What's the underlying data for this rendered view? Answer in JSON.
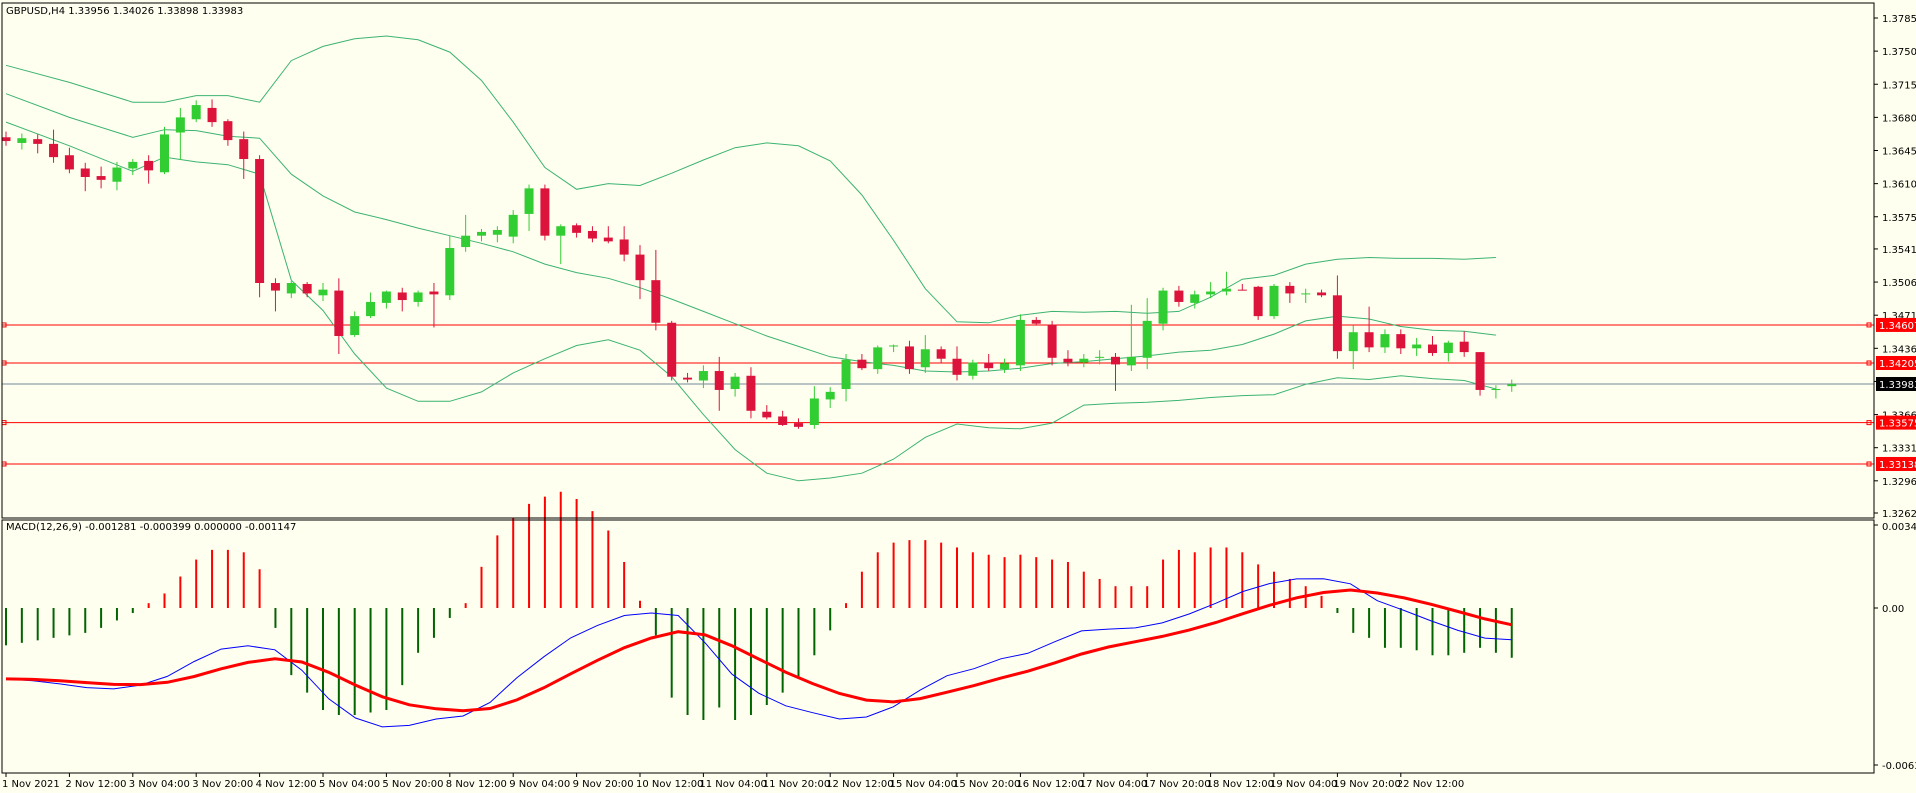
{
  "window": {
    "header": "GBPUSD,H4  1.33956 1.34026 1.33898 1.33983",
    "macd_header": "MACD(12,26,9) -0.001281 -0.000399 0.000000 -0.001147"
  },
  "colors": {
    "background": "#fffff0",
    "bull_candle": "#32cd32",
    "bear_candle": "#dc143c",
    "bollinger": "#3cb371",
    "level_line": "#ff0000",
    "bid_line": "#778899",
    "macd_line": "#0000ff",
    "signal_line": "#ff0000",
    "hist_positive": "#ff0000",
    "hist_negative": "#006400"
  },
  "chart_data": [
    {
      "type": "candlestick",
      "symbol": "GBPUSD",
      "timeframe": "H4",
      "ylim": [
        1.3262,
        1.3785
      ],
      "price_ticks": [
        "1.37850",
        "1.37500",
        "1.37150",
        "1.36800",
        "1.36450",
        "1.36100",
        "1.35750",
        "1.35410",
        "1.35060",
        "1.34710",
        "1.34360",
        "1.34010",
        "1.33660",
        "1.33310",
        "1.32960",
        "1.32620"
      ],
      "x_labels": [
        "1 Nov 2021",
        "2 Nov 12:00",
        "3 Nov 04:00",
        "3 Nov 20:00",
        "4 Nov 12:00",
        "5 Nov 04:00",
        "5 Nov 20:00",
        "8 Nov 12:00",
        "9 Nov 04:00",
        "9 Nov 20:00",
        "10 Nov 12:00",
        "11 Nov 04:00",
        "11 Nov 20:00",
        "12 Nov 12:00",
        "15 Nov 04:00",
        "15 Nov 20:00",
        "16 Nov 12:00",
        "17 Nov 04:00",
        "17 Nov 20:00",
        "18 Nov 12:00",
        "19 Nov 04:00",
        "19 Nov 20:00",
        "22 Nov 12:00"
      ],
      "x_label_candle_index": [
        0,
        4,
        8,
        12,
        16,
        20,
        24,
        28,
        32,
        36,
        40,
        44,
        48,
        52,
        56,
        60,
        64,
        68,
        72,
        76,
        80,
        84,
        88
      ],
      "candles": [
        {
          "o": 1.3659,
          "h": 1.3665,
          "l": 1.365,
          "c": 1.3655
        },
        {
          "o": 1.3653,
          "h": 1.3663,
          "l": 1.3646,
          "c": 1.3658
        },
        {
          "o": 1.3657,
          "h": 1.3662,
          "l": 1.3642,
          "c": 1.3652
        },
        {
          "o": 1.3652,
          "h": 1.3667,
          "l": 1.3632,
          "c": 1.3638
        },
        {
          "o": 1.364,
          "h": 1.3648,
          "l": 1.3621,
          "c": 1.3625
        },
        {
          "o": 1.3626,
          "h": 1.3632,
          "l": 1.3602,
          "c": 1.3617
        },
        {
          "o": 1.3618,
          "h": 1.3628,
          "l": 1.3605,
          "c": 1.3614
        },
        {
          "o": 1.3612,
          "h": 1.3633,
          "l": 1.3603,
          "c": 1.3627
        },
        {
          "o": 1.3626,
          "h": 1.3636,
          "l": 1.3619,
          "c": 1.3633
        },
        {
          "o": 1.3634,
          "h": 1.364,
          "l": 1.361,
          "c": 1.3624
        },
        {
          "o": 1.3622,
          "h": 1.367,
          "l": 1.362,
          "c": 1.3662
        },
        {
          "o": 1.3664,
          "h": 1.369,
          "l": 1.3635,
          "c": 1.368
        },
        {
          "o": 1.3678,
          "h": 1.3698,
          "l": 1.3675,
          "c": 1.3693
        },
        {
          "o": 1.369,
          "h": 1.3699,
          "l": 1.367,
          "c": 1.3675
        },
        {
          "o": 1.3676,
          "h": 1.3678,
          "l": 1.365,
          "c": 1.3656
        },
        {
          "o": 1.3657,
          "h": 1.3665,
          "l": 1.3615,
          "c": 1.3636
        },
        {
          "o": 1.3636,
          "h": 1.364,
          "l": 1.349,
          "c": 1.3505
        },
        {
          "o": 1.3505,
          "h": 1.351,
          "l": 1.3475,
          "c": 1.3497
        },
        {
          "o": 1.3494,
          "h": 1.3507,
          "l": 1.3489,
          "c": 1.3505
        },
        {
          "o": 1.3504,
          "h": 1.3506,
          "l": 1.349,
          "c": 1.3494
        },
        {
          "o": 1.3492,
          "h": 1.3505,
          "l": 1.3486,
          "c": 1.3498
        },
        {
          "o": 1.3497,
          "h": 1.351,
          "l": 1.343,
          "c": 1.3449
        },
        {
          "o": 1.345,
          "h": 1.3475,
          "l": 1.3448,
          "c": 1.347
        },
        {
          "o": 1.347,
          "h": 1.3495,
          "l": 1.3468,
          "c": 1.3485
        },
        {
          "o": 1.3484,
          "h": 1.3497,
          "l": 1.3478,
          "c": 1.3496
        },
        {
          "o": 1.3495,
          "h": 1.35,
          "l": 1.3475,
          "c": 1.3487
        },
        {
          "o": 1.3485,
          "h": 1.3497,
          "l": 1.348,
          "c": 1.3495
        },
        {
          "o": 1.3496,
          "h": 1.3505,
          "l": 1.3458,
          "c": 1.3493
        },
        {
          "o": 1.3492,
          "h": 1.3555,
          "l": 1.3487,
          "c": 1.3542
        },
        {
          "o": 1.3543,
          "h": 1.3577,
          "l": 1.3538,
          "c": 1.3555
        },
        {
          "o": 1.3555,
          "h": 1.3562,
          "l": 1.3549,
          "c": 1.3559
        },
        {
          "o": 1.3556,
          "h": 1.3565,
          "l": 1.3548,
          "c": 1.3561
        },
        {
          "o": 1.3554,
          "h": 1.3582,
          "l": 1.3547,
          "c": 1.3577
        },
        {
          "o": 1.3578,
          "h": 1.3609,
          "l": 1.356,
          "c": 1.3605
        },
        {
          "o": 1.3605,
          "h": 1.3609,
          "l": 1.355,
          "c": 1.3555
        },
        {
          "o": 1.3555,
          "h": 1.3567,
          "l": 1.3525,
          "c": 1.3565
        },
        {
          "o": 1.3566,
          "h": 1.3568,
          "l": 1.3553,
          "c": 1.3558
        },
        {
          "o": 1.356,
          "h": 1.3565,
          "l": 1.3548,
          "c": 1.3552
        },
        {
          "o": 1.3553,
          "h": 1.3565,
          "l": 1.3547,
          "c": 1.3549
        },
        {
          "o": 1.3551,
          "h": 1.3565,
          "l": 1.3528,
          "c": 1.3535
        },
        {
          "o": 1.3535,
          "h": 1.3545,
          "l": 1.3488,
          "c": 1.3508
        },
        {
          "o": 1.3508,
          "h": 1.354,
          "l": 1.3455,
          "c": 1.3463
        },
        {
          "o": 1.3463,
          "h": 1.3465,
          "l": 1.3402,
          "c": 1.3406
        },
        {
          "o": 1.3405,
          "h": 1.341,
          "l": 1.34,
          "c": 1.3403
        },
        {
          "o": 1.3402,
          "h": 1.3418,
          "l": 1.3394,
          "c": 1.3412
        },
        {
          "o": 1.3412,
          "h": 1.3427,
          "l": 1.337,
          "c": 1.3392
        },
        {
          "o": 1.3393,
          "h": 1.341,
          "l": 1.3385,
          "c": 1.3406
        },
        {
          "o": 1.3407,
          "h": 1.3416,
          "l": 1.3362,
          "c": 1.337
        },
        {
          "o": 1.3369,
          "h": 1.3376,
          "l": 1.3361,
          "c": 1.3363
        },
        {
          "o": 1.3364,
          "h": 1.337,
          "l": 1.3354,
          "c": 1.3355
        },
        {
          "o": 1.3357,
          "h": 1.3362,
          "l": 1.3351,
          "c": 1.3353
        },
        {
          "o": 1.3355,
          "h": 1.3396,
          "l": 1.3351,
          "c": 1.3383
        },
        {
          "o": 1.3382,
          "h": 1.3395,
          "l": 1.3373,
          "c": 1.339
        },
        {
          "o": 1.3393,
          "h": 1.343,
          "l": 1.338,
          "c": 1.3424
        },
        {
          "o": 1.3424,
          "h": 1.343,
          "l": 1.3413,
          "c": 1.3415
        },
        {
          "o": 1.3414,
          "h": 1.3439,
          "l": 1.3409,
          "c": 1.3437
        },
        {
          "o": 1.3438,
          "h": 1.344,
          "l": 1.3432,
          "c": 1.3439
        },
        {
          "o": 1.3438,
          "h": 1.3444,
          "l": 1.3409,
          "c": 1.3414
        },
        {
          "o": 1.3416,
          "h": 1.345,
          "l": 1.341,
          "c": 1.3435
        },
        {
          "o": 1.3435,
          "h": 1.3438,
          "l": 1.342,
          "c": 1.3425
        },
        {
          "o": 1.3425,
          "h": 1.3438,
          "l": 1.3402,
          "c": 1.3408
        },
        {
          "o": 1.3407,
          "h": 1.3424,
          "l": 1.3403,
          "c": 1.3421
        },
        {
          "o": 1.3421,
          "h": 1.343,
          "l": 1.3412,
          "c": 1.3415
        },
        {
          "o": 1.3414,
          "h": 1.3425,
          "l": 1.341,
          "c": 1.342
        },
        {
          "o": 1.3418,
          "h": 1.3472,
          "l": 1.3412,
          "c": 1.3466
        },
        {
          "o": 1.3466,
          "h": 1.3469,
          "l": 1.346,
          "c": 1.3462
        },
        {
          "o": 1.3461,
          "h": 1.3465,
          "l": 1.3418,
          "c": 1.3426
        },
        {
          "o": 1.3425,
          "h": 1.3434,
          "l": 1.3417,
          "c": 1.3421
        },
        {
          "o": 1.3421,
          "h": 1.343,
          "l": 1.3416,
          "c": 1.3425
        },
        {
          "o": 1.3426,
          "h": 1.3434,
          "l": 1.3419,
          "c": 1.3427
        },
        {
          "o": 1.3427,
          "h": 1.3431,
          "l": 1.3391,
          "c": 1.3419
        },
        {
          "o": 1.3418,
          "h": 1.3482,
          "l": 1.3412,
          "c": 1.3427
        },
        {
          "o": 1.3426,
          "h": 1.3489,
          "l": 1.3414,
          "c": 1.3465
        },
        {
          "o": 1.3462,
          "h": 1.35,
          "l": 1.3455,
          "c": 1.3497
        },
        {
          "o": 1.3497,
          "h": 1.3502,
          "l": 1.348,
          "c": 1.3485
        },
        {
          "o": 1.3484,
          "h": 1.3497,
          "l": 1.3478,
          "c": 1.3493
        },
        {
          "o": 1.3493,
          "h": 1.3506,
          "l": 1.3489,
          "c": 1.3496
        },
        {
          "o": 1.3496,
          "h": 1.3517,
          "l": 1.3492,
          "c": 1.3499
        },
        {
          "o": 1.3498,
          "h": 1.3504,
          "l": 1.3497,
          "c": 1.3497
        },
        {
          "o": 1.3501,
          "h": 1.3502,
          "l": 1.3466,
          "c": 1.347
        },
        {
          "o": 1.347,
          "h": 1.3504,
          "l": 1.3467,
          "c": 1.3502
        },
        {
          "o": 1.3502,
          "h": 1.3506,
          "l": 1.3484,
          "c": 1.3494
        },
        {
          "o": 1.3494,
          "h": 1.3499,
          "l": 1.3484,
          "c": 1.3494
        },
        {
          "o": 1.3495,
          "h": 1.3498,
          "l": 1.349,
          "c": 1.3492
        },
        {
          "o": 1.3492,
          "h": 1.3513,
          "l": 1.3425,
          "c": 1.3433
        },
        {
          "o": 1.3433,
          "h": 1.346,
          "l": 1.3414,
          "c": 1.3453
        },
        {
          "o": 1.3453,
          "h": 1.348,
          "l": 1.3432,
          "c": 1.3437
        },
        {
          "o": 1.3437,
          "h": 1.3456,
          "l": 1.3431,
          "c": 1.3451
        },
        {
          "o": 1.3451,
          "h": 1.3456,
          "l": 1.343,
          "c": 1.3436
        },
        {
          "o": 1.3436,
          "h": 1.3447,
          "l": 1.3428,
          "c": 1.344
        },
        {
          "o": 1.344,
          "h": 1.3449,
          "l": 1.3428,
          "c": 1.3431
        },
        {
          "o": 1.3431,
          "h": 1.3444,
          "l": 1.3422,
          "c": 1.3442
        },
        {
          "o": 1.3443,
          "h": 1.3454,
          "l": 1.3427,
          "c": 1.3432
        },
        {
          "o": 1.3432,
          "h": 1.3432,
          "l": 1.3386,
          "c": 1.3392
        },
        {
          "o": 1.3392,
          "h": 1.3397,
          "l": 1.3383,
          "c": 1.3393
        },
        {
          "o": 1.3396,
          "h": 1.3403,
          "l": 1.339,
          "c": 1.3398
        }
      ],
      "bollinger": {
        "anchors_candle_index": [
          0,
          4,
          8,
          10,
          12,
          14,
          16,
          18,
          20,
          22,
          24,
          26,
          28,
          30,
          32,
          34,
          36,
          38,
          40,
          42,
          44,
          46,
          48,
          50,
          52,
          54,
          56,
          58,
          60,
          62,
          64,
          66,
          68,
          70,
          72,
          74,
          76,
          78,
          80,
          82,
          84,
          86,
          88,
          90,
          92,
          94
        ],
        "upper": [
          1.3735,
          1.3717,
          1.3696,
          1.3696,
          1.3703,
          1.3703,
          1.3696,
          1.374,
          1.3755,
          1.3763,
          1.3766,
          1.3762,
          1.3749,
          1.3719,
          1.3675,
          1.3627,
          1.3604,
          1.361,
          1.3608,
          1.3621,
          1.3635,
          1.3648,
          1.3653,
          1.365,
          1.3634,
          1.3598,
          1.355,
          1.3499,
          1.3464,
          1.3463,
          1.3471,
          1.3475,
          1.3474,
          1.3475,
          1.3473,
          1.3475,
          1.349,
          1.3509,
          1.3513,
          1.3525,
          1.353,
          1.3532,
          1.3531,
          1.3531,
          1.353,
          1.3532
        ],
        "middle": [
          1.3705,
          1.368,
          1.3659,
          1.3667,
          1.3666,
          1.366,
          1.3658,
          1.362,
          1.3597,
          1.358,
          1.3572,
          1.3563,
          1.3555,
          1.3547,
          1.3538,
          1.3525,
          1.3516,
          1.351,
          1.35,
          1.3488,
          1.3475,
          1.3462,
          1.3449,
          1.3438,
          1.3427,
          1.3422,
          1.3418,
          1.3412,
          1.3411,
          1.3412,
          1.3415,
          1.342,
          1.3422,
          1.3425,
          1.3428,
          1.3432,
          1.3434,
          1.344,
          1.3451,
          1.3465,
          1.347,
          1.3467,
          1.3459,
          1.3455,
          1.3454,
          1.345
        ],
        "lower": [
          1.3675,
          1.365,
          1.3623,
          1.3638,
          1.3633,
          1.363,
          1.362,
          1.3508,
          1.3476,
          1.343,
          1.3394,
          1.338,
          1.338,
          1.339,
          1.341,
          1.3425,
          1.3439,
          1.3445,
          1.3434,
          1.3406,
          1.3366,
          1.3329,
          1.3304,
          1.3296,
          1.3299,
          1.3304,
          1.3319,
          1.3342,
          1.3356,
          1.3352,
          1.3351,
          1.3357,
          1.3376,
          1.3378,
          1.3379,
          1.3381,
          1.3384,
          1.3386,
          1.3387,
          1.3398,
          1.3405,
          1.3403,
          1.3407,
          1.3404,
          1.3402,
          1.3393
        ]
      },
      "horizontal_levels": [
        {
          "price": 1.34607,
          "label": "1.34607",
          "color": "#ff0000"
        },
        {
          "price": 1.34205,
          "label": "1.34205",
          "color": "#ff0000"
        },
        {
          "price": 1.33575,
          "label": "1.33575",
          "color": "#ff0000"
        },
        {
          "price": 1.33138,
          "label": "1.33138",
          "color": "#ff0000"
        }
      ],
      "bid": {
        "price": 1.33983,
        "label": "1.33983"
      }
    },
    {
      "type": "bar",
      "title": "MACD(12,26,9)",
      "ylim": [
        -0.00631,
        0.003427
      ],
      "y_ticks": [
        "0.003427",
        "0.00",
        "-0.00631"
      ],
      "histogram": [
        -0.0015,
        -0.0014,
        -0.0013,
        -0.0012,
        -0.0011,
        -0.001,
        -0.0008,
        -0.0005,
        -0.0002,
        0.0002,
        0.0006,
        0.0013,
        0.002,
        0.0024,
        0.0024,
        0.0023,
        0.0016,
        -0.0008,
        -0.0027,
        -0.0034,
        -0.0041,
        -0.0043,
        -0.0043,
        -0.0042,
        -0.0041,
        -0.0031,
        -0.0018,
        -0.0012,
        -0.0004,
        0.0002,
        0.0017,
        0.003,
        0.0037,
        0.0043,
        0.0046,
        0.0048,
        0.0045,
        0.004,
        0.0032,
        0.0019,
        0.0003,
        -0.0011,
        -0.0036,
        -0.0043,
        -0.0045,
        -0.004,
        -0.0045,
        -0.0043,
        -0.0039,
        -0.0034,
        -0.0028,
        -0.0019,
        -0.0009,
        0.0002,
        0.0015,
        0.0023,
        0.0027,
        0.0028,
        0.0028,
        0.0027,
        0.0025,
        0.0023,
        0.0022,
        0.0021,
        0.0022,
        0.0021,
        0.002,
        0.0019,
        0.0015,
        0.0012,
        0.0009,
        0.0009,
        0.0009,
        0.002,
        0.0024,
        0.0023,
        0.0025,
        0.0025,
        0.0023,
        0.0018,
        0.0015,
        0.0012,
        0.0009,
        0.0005,
        -0.0002,
        -0.001,
        -0.0012,
        -0.0016,
        -0.0016,
        -0.0017,
        -0.0019,
        -0.0019,
        -0.0018,
        -0.0016,
        -0.0018,
        -0.002
      ],
      "macd": [
        -0.00285,
        -0.00292,
        -0.00305,
        -0.0032,
        -0.00325,
        -0.0031,
        -0.00275,
        -0.00215,
        -0.00165,
        -0.00152,
        -0.00168,
        -0.0025,
        -0.00365,
        -0.00442,
        -0.00478,
        -0.00472,
        -0.00446,
        -0.00434,
        -0.0038,
        -0.0028,
        -0.00196,
        -0.0012,
        -0.0007,
        -0.0003,
        -0.0002,
        -0.0003,
        -0.0014,
        -0.00266,
        -0.00343,
        -0.00393,
        -0.00421,
        -0.00446,
        -0.00438,
        -0.00397,
        -0.0033,
        -0.00272,
        -0.00244,
        -0.00204,
        -0.00182,
        -0.00136,
        -0.00092,
        -0.00085,
        -0.0008,
        -0.0006,
        -0.00024,
        0.0002,
        0.00068,
        0.00101,
        0.0012,
        0.00121,
        0.001,
        0.0003,
        -0.0001,
        -0.00052,
        -0.0009,
        -0.00121,
        -0.00128
      ]
    }
  ]
}
